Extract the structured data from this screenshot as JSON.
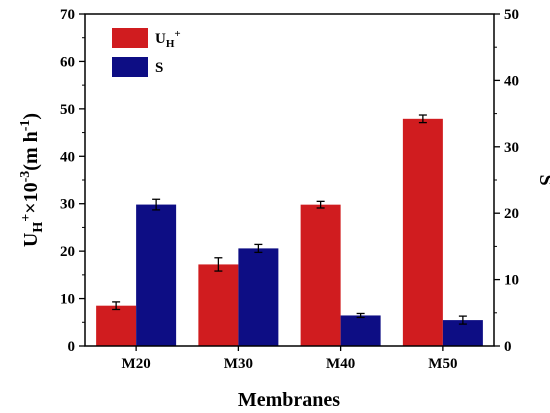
{
  "chart_data": {
    "type": "bar",
    "categories": [
      "M20",
      "M30",
      "M40",
      "M50"
    ],
    "xlabel": "Membranes",
    "ylabel_left": {
      "main": "U",
      "sub": "H",
      "sup": "+",
      "rest": "×10",
      "exp": "-3",
      "unit_open": "(m h",
      "unit_exp": "-1",
      "unit_close": ")"
    },
    "ylabel_right": "S",
    "ylim_left": [
      0,
      70
    ],
    "ylim_right": [
      0,
      50
    ],
    "yticks_left": [
      0,
      10,
      20,
      30,
      40,
      50,
      60,
      70
    ],
    "yticks_right": [
      0,
      10,
      20,
      30,
      40,
      50
    ],
    "series": [
      {
        "name": "U",
        "name_sub": "H",
        "name_sup": "+",
        "axis": "left",
        "color": "#d01c1f",
        "values": [
          8.5,
          17.2,
          29.8,
          47.9
        ],
        "errors": [
          0.8,
          1.4,
          0.7,
          0.8
        ]
      },
      {
        "name": "S",
        "axis": "right",
        "color": "#0d0d84",
        "values": [
          21.3,
          14.7,
          4.6,
          3.9
        ],
        "errors": [
          0.8,
          0.6,
          0.3,
          0.6
        ]
      }
    ],
    "grid": false,
    "legend": "top-left"
  }
}
